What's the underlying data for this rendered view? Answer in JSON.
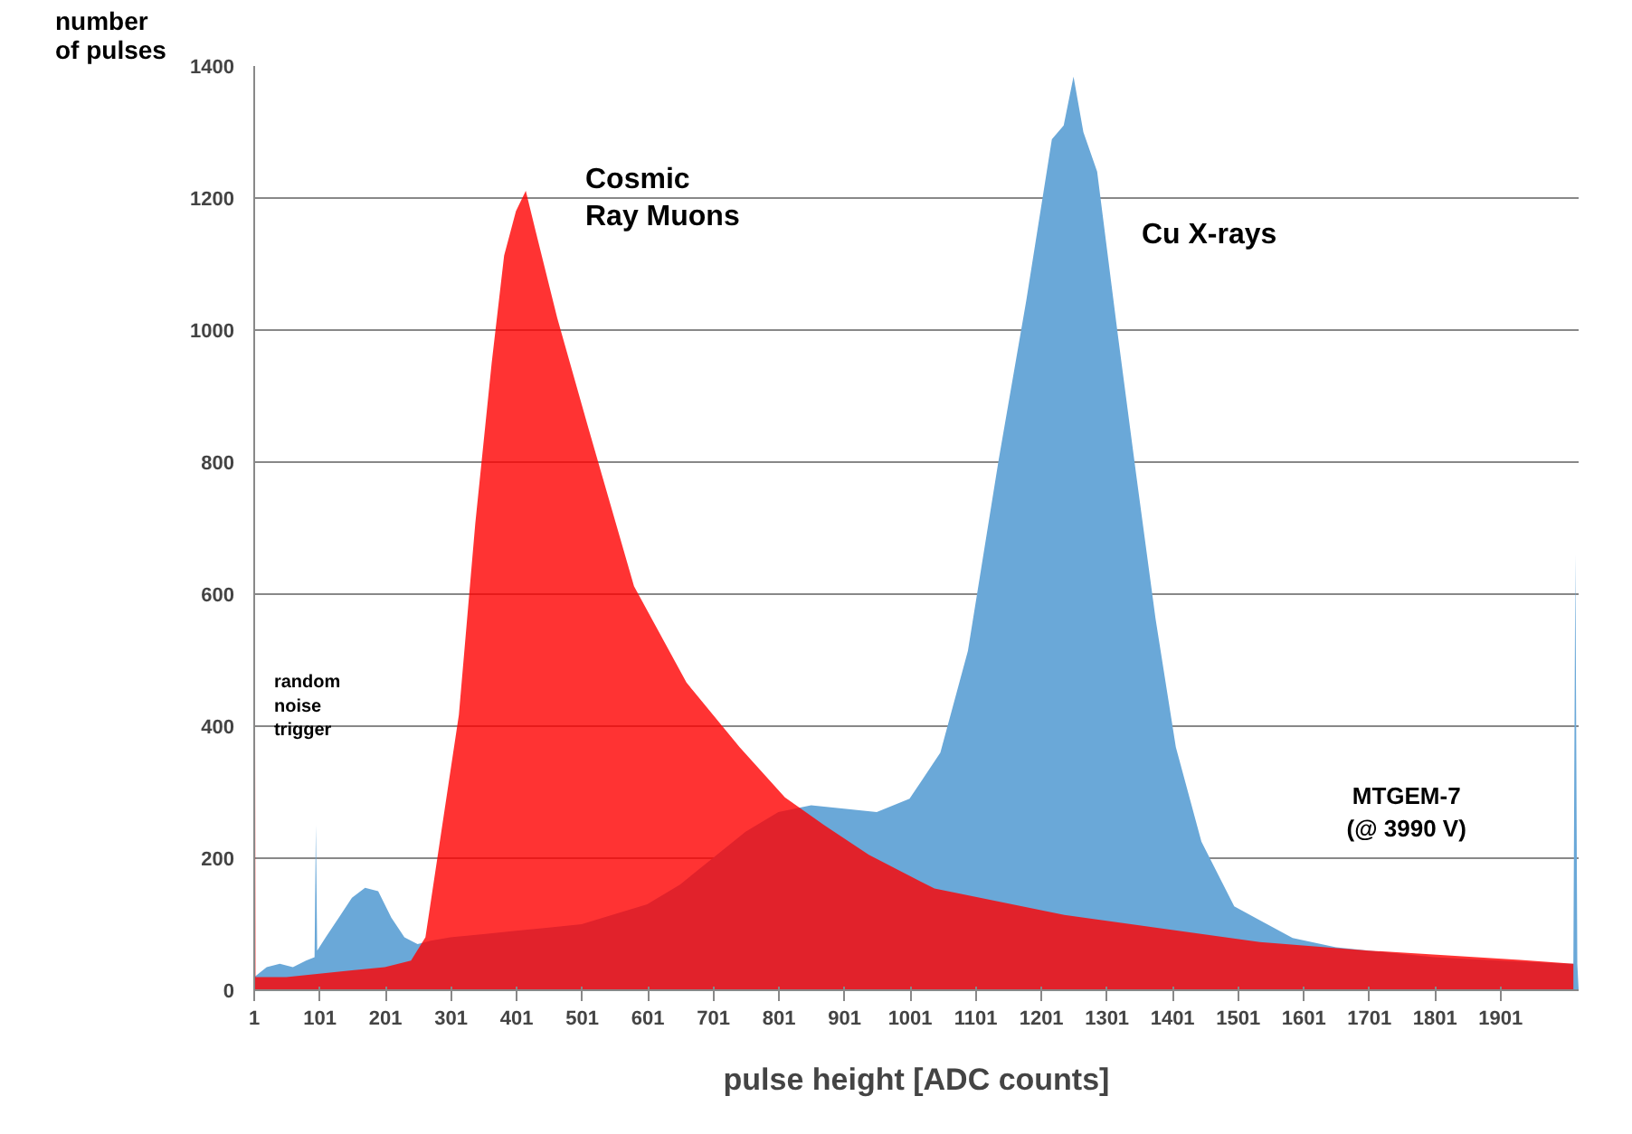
{
  "chart_data": {
    "type": "area",
    "xlabel": "pulse height [ADC counts]",
    "ylabel": "number of pulses",
    "xlim": [
      1,
      2020
    ],
    "ylim": [
      0,
      1400
    ],
    "xticks": [
      1,
      101,
      201,
      301,
      401,
      501,
      601,
      701,
      801,
      901,
      1001,
      1101,
      1201,
      1301,
      1401,
      1501,
      1601,
      1701,
      1801,
      1901
    ],
    "yticks": [
      0,
      200,
      400,
      600,
      800,
      1000,
      1200,
      1400
    ],
    "grid": "y",
    "series": [
      {
        "color": "#6aa8d8",
        "x": [
          1,
          20,
          40,
          60,
          80,
          93,
          95,
          97,
          110,
          130,
          150,
          170,
          190,
          210,
          230,
          250,
          270,
          300,
          350,
          400,
          450,
          500,
          550,
          600,
          650,
          700,
          750,
          800,
          850,
          900,
          950,
          1000,
          1047,
          1089,
          1136,
          1178,
          1217,
          1235,
          1250,
          1265,
          1286,
          1317,
          1345,
          1375,
          1406,
          1445,
          1495,
          1584,
          1650,
          1700,
          1800,
          1900,
          2005,
          2012,
          2015,
          2018,
          2020
        ],
        "values": [
          20,
          35,
          40,
          35,
          45,
          50,
          250,
          60,
          80,
          110,
          140,
          155,
          150,
          110,
          80,
          70,
          75,
          80,
          85,
          90,
          95,
          100,
          115,
          130,
          160,
          200,
          240,
          270,
          280,
          275,
          270,
          290,
          360,
          514,
          804,
          1045,
          1289,
          1310,
          1384,
          1300,
          1240,
          997,
          785,
          563,
          368,
          225,
          127,
          79,
          65,
          60,
          50,
          45,
          40,
          40,
          660,
          40,
          0
        ]
      },
      {
        "color": "#ff3333",
        "x": [
          1,
          3,
          5,
          50,
          100,
          150,
          200,
          240,
          262,
          313,
          338,
          363,
          382,
          400,
          415,
          430,
          463,
          510,
          580,
          660,
          741,
          810,
          870,
          938,
          1038,
          1236,
          1534,
          1700,
          1931,
          2012
        ],
        "values": [
          1250,
          20,
          20,
          20,
          25,
          30,
          35,
          45,
          80,
          417,
          707,
          950,
          1113,
          1180,
          1211,
          1150,
          1018,
          853,
          612,
          466,
          368,
          292,
          250,
          205,
          154,
          114,
          73,
          60,
          46,
          40
        ]
      }
    ],
    "annotations": [
      "Cosmic\nRay Muons",
      "Cu X-rays",
      "random\nnoise\ntrigger",
      "MTGEM-7\n(@ 3990 V)"
    ]
  }
}
